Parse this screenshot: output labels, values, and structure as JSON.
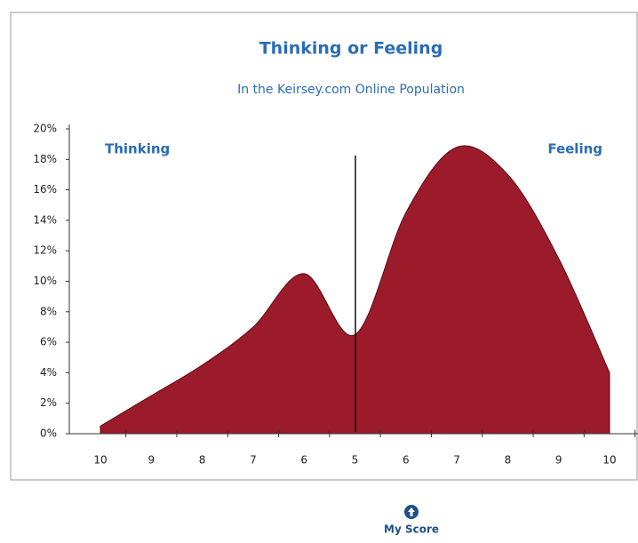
{
  "chart_data": {
    "type": "area",
    "title": "Thinking or Feeling",
    "subtitle": "In the Keirsey.com Online Population",
    "categories": [
      "10",
      "9",
      "8",
      "7",
      "6",
      "5",
      "6",
      "7",
      "8",
      "9",
      "10"
    ],
    "values": [
      0.5,
      2.5,
      4.5,
      7,
      10.5,
      6.5,
      14.5,
      18.8,
      17,
      11.5,
      4
    ],
    "color": "#9b1b2a",
    "ylim": [
      0,
      20
    ],
    "yticks": [
      {
        "value": 0,
        "label": "0%"
      },
      {
        "value": 2,
        "label": "2%"
      },
      {
        "value": 4,
        "label": "4%"
      },
      {
        "value": 6,
        "label": "6%"
      },
      {
        "value": 8,
        "label": "8%"
      },
      {
        "value": 10,
        "label": "10%"
      },
      {
        "value": 12,
        "label": "12%"
      },
      {
        "value": 14,
        "label": "14%"
      },
      {
        "value": 16,
        "label": "16%"
      },
      {
        "value": 18,
        "label": "18%"
      },
      {
        "value": 20,
        "label": "20%"
      }
    ],
    "annotations": [
      "Thinking",
      "Feeling",
      "My Score"
    ]
  }
}
